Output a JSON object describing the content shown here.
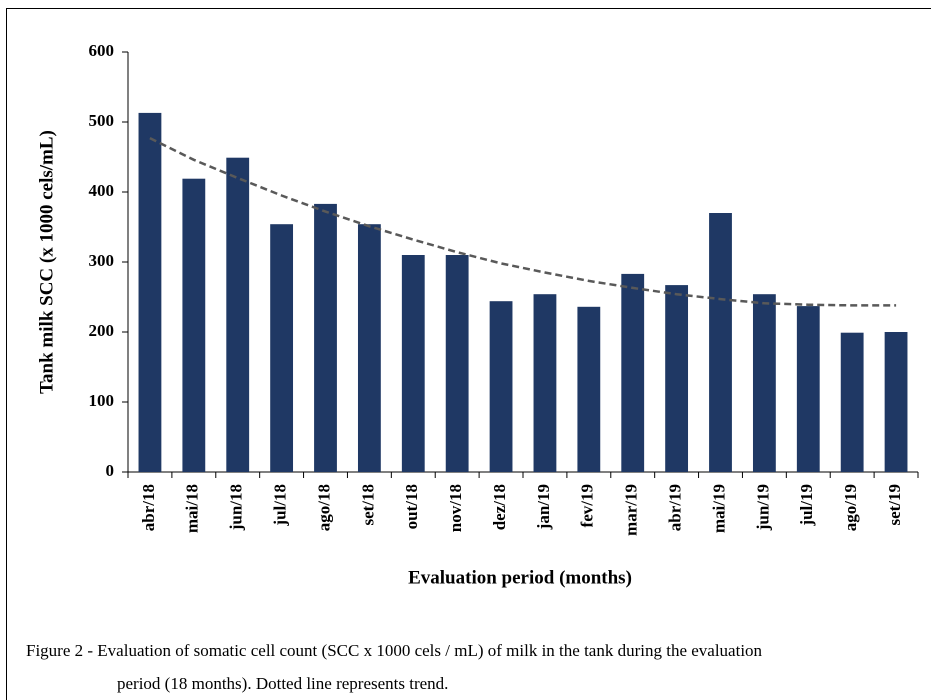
{
  "chart_data": {
    "type": "bar",
    "y_label": "Tank milk SCC (x 1000 cels/mL)",
    "x_label": "Evaluation period (months)",
    "caption": [
      "Figure 2 - Evaluation of somatic cell count (SCC x 1000 cels / mL) of milk in the tank during the evaluation",
      "period (18 months). Dotted line represents trend."
    ],
    "categories": [
      "abr/18",
      "mai/18",
      "jun/18",
      "jul/18",
      "ago/18",
      "set/18",
      "out/18",
      "nov/18",
      "dez/18",
      "jan/19",
      "fev/19",
      "mar/19",
      "abr/19",
      "mai/19",
      "jun/19",
      "jul/19",
      "ago/19",
      "set/19"
    ],
    "values": [
      513,
      419,
      449,
      354,
      383,
      354,
      310,
      310,
      244,
      254,
      236,
      283,
      267,
      370,
      254,
      237,
      199,
      200
    ],
    "color": "#1f3864",
    "trend": {
      "values": [
        477,
        446,
        420,
        395,
        372,
        351,
        332,
        314,
        298,
        285,
        273,
        263,
        254,
        247,
        241,
        239,
        238,
        238
      ],
      "color": "#595959",
      "dashed": true
    },
    "ylim": [
      0,
      600
    ],
    "yticks": [
      0,
      100,
      200,
      300,
      400,
      500,
      600
    ],
    "grid": false
  }
}
